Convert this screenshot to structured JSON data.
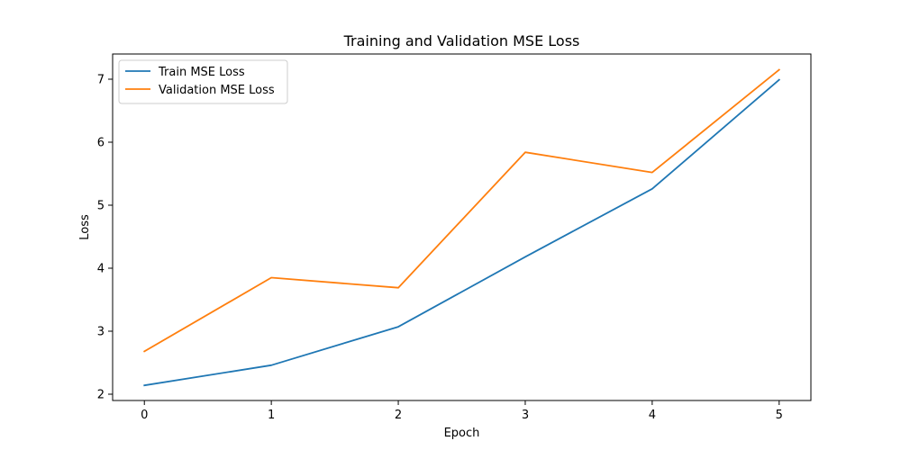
{
  "chart_data": {
    "type": "line",
    "title": "Training and Validation MSE Loss",
    "xlabel": "Epoch",
    "ylabel": "Loss",
    "x": [
      0,
      1,
      2,
      3,
      4,
      5
    ],
    "xlim": [
      -0.25,
      5.25
    ],
    "ylim": [
      1.9,
      7.4
    ],
    "xticks": [
      "0",
      "1",
      "2",
      "3",
      "4",
      "5"
    ],
    "yticks": [
      2,
      3,
      4,
      5,
      6,
      7
    ],
    "ytick_labels": [
      "2",
      "3",
      "4",
      "5",
      "6",
      "7"
    ],
    "grid": false,
    "legend_position": "top-left",
    "series": [
      {
        "name": "Train MSE Loss",
        "color": "#1f77b4",
        "values": [
          2.14,
          2.46,
          3.07,
          4.18,
          5.26,
          6.99
        ]
      },
      {
        "name": "Validation MSE Loss",
        "color": "#ff7f0e",
        "values": [
          2.68,
          3.85,
          3.69,
          5.84,
          5.52,
          7.15
        ]
      }
    ]
  }
}
